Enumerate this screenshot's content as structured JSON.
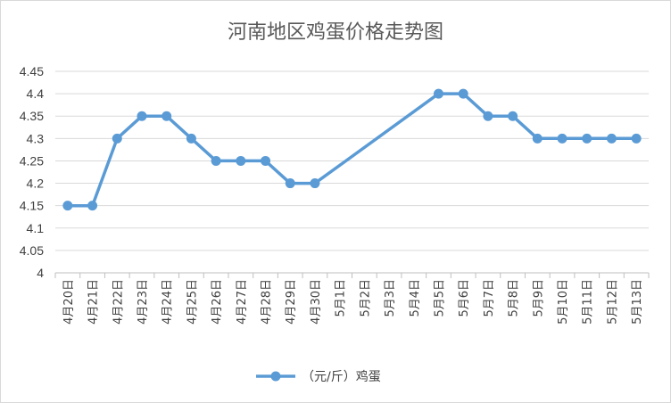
{
  "chart_data": {
    "type": "line",
    "title": "河南地区鸡蛋价格走势图",
    "xlabel": "",
    "ylabel": "",
    "ylim": [
      4,
      4.45
    ],
    "yticks": [
      "4",
      "4.05",
      "4.1",
      "4.15",
      "4.2",
      "4.25",
      "4.3",
      "4.35",
      "4.4",
      "4.45"
    ],
    "grid": true,
    "legend_position": "bottom",
    "categories": [
      "4月20日",
      "4月21日",
      "4月22日",
      "4月23日",
      "4月24日",
      "4月25日",
      "4月26日",
      "4月27日",
      "4月28日",
      "4月29日",
      "4月30日",
      "5月1日",
      "5月2日",
      "5月3日",
      "5月4日",
      "5月5日",
      "5月6日",
      "5月7日",
      "5月8日",
      "5月9日",
      "5月10日",
      "5月11日",
      "5月12日",
      "5月13日"
    ],
    "series": [
      {
        "name": "（元/斤）鸡蛋",
        "color": "#5b9bd5",
        "values": [
          4.15,
          4.15,
          4.3,
          4.35,
          4.35,
          4.3,
          4.25,
          4.25,
          4.25,
          4.2,
          4.2,
          null,
          null,
          null,
          null,
          4.4,
          4.4,
          4.35,
          4.35,
          4.3,
          4.3,
          4.3,
          4.3,
          4.3
        ]
      }
    ]
  }
}
